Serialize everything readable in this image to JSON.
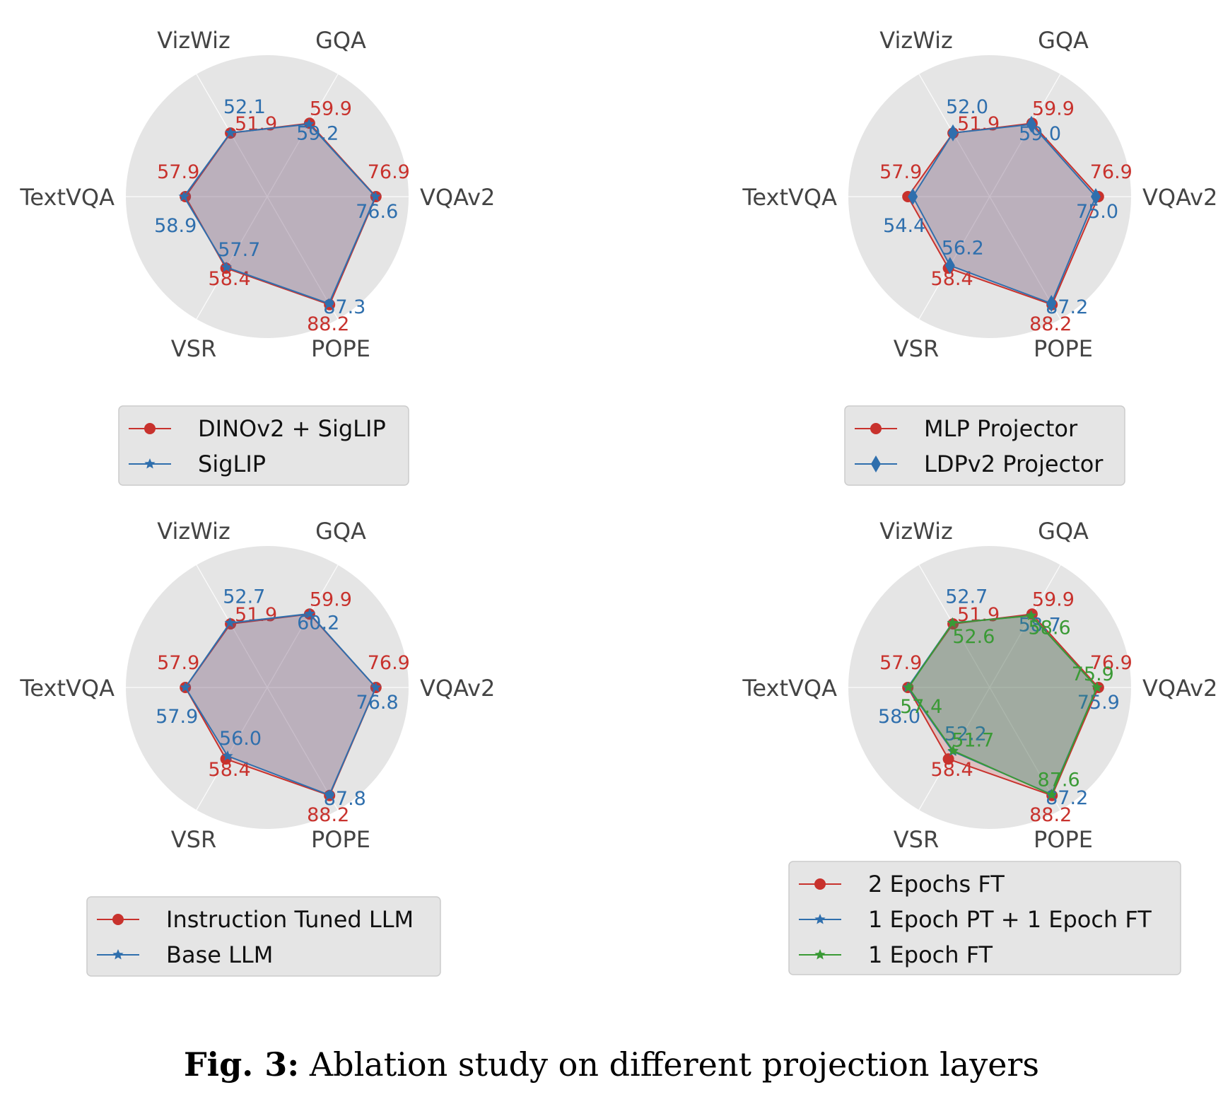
{
  "caption": {
    "prefix": "Fig. 3:",
    "text": "Ablation study on different projection layers"
  },
  "colors": {
    "red": "#c8322d",
    "blue": "#2f6fad",
    "green": "#3a9a35",
    "bg": "#e5e5e5",
    "grid": "#ffffff"
  },
  "chart_data": [
    {
      "type": "radar",
      "title": "",
      "axes": [
        "GQA",
        "VQAv2",
        "POPE",
        "VSR",
        "TextVQA",
        "VizWiz"
      ],
      "rlim": [
        0,
        100
      ],
      "legend_position": "below",
      "series": [
        {
          "name": "DINOv2 + SigLIP",
          "color": "red",
          "marker": "circle",
          "values": [
            59.9,
            76.9,
            88.2,
            58.4,
            57.9,
            51.9
          ],
          "labels": [
            "59.9",
            "76.9",
            "88.2",
            "58.4",
            "57.9",
            "51.9"
          ]
        },
        {
          "name": "SigLIP",
          "color": "blue",
          "marker": "star",
          "values": [
            59.2,
            76.6,
            87.3,
            57.7,
            58.9,
            52.1
          ],
          "labels": [
            "59.2",
            "76.6",
            "87.3",
            "57.7",
            "58.9",
            "52.1"
          ]
        }
      ]
    },
    {
      "type": "radar",
      "title": "",
      "axes": [
        "GQA",
        "VQAv2",
        "POPE",
        "VSR",
        "TextVQA",
        "VizWiz"
      ],
      "rlim": [
        0,
        100
      ],
      "legend_position": "below",
      "series": [
        {
          "name": "MLP Projector",
          "color": "red",
          "marker": "circle",
          "values": [
            59.9,
            76.9,
            88.2,
            58.4,
            57.9,
            51.9
          ],
          "labels": [
            "59.9",
            "76.9",
            "88.2",
            "58.4",
            "57.9",
            "51.9"
          ]
        },
        {
          "name": "LDPv2 Projector",
          "color": "blue",
          "marker": "diamond",
          "values": [
            59.0,
            75.0,
            87.2,
            56.2,
            54.4,
            52.0
          ],
          "labels": [
            "59.0",
            "75.0",
            "87.2",
            "56.2",
            "54.4",
            "52.0"
          ]
        }
      ]
    },
    {
      "type": "radar",
      "title": "",
      "axes": [
        "GQA",
        "VQAv2",
        "POPE",
        "VSR",
        "TextVQA",
        "VizWiz"
      ],
      "rlim": [
        0,
        100
      ],
      "legend_position": "below",
      "series": [
        {
          "name": "Instruction Tuned LLM",
          "color": "red",
          "marker": "circle",
          "values": [
            59.9,
            76.9,
            88.2,
            58.4,
            57.9,
            51.9
          ],
          "labels": [
            "59.9",
            "76.9",
            "88.2",
            "58.4",
            "57.9",
            "51.9"
          ]
        },
        {
          "name": "Base LLM",
          "color": "blue",
          "marker": "star",
          "values": [
            60.2,
            76.8,
            87.8,
            56.0,
            57.9,
            52.7
          ],
          "labels": [
            "60.2",
            "76.8",
            "87.8",
            "56.0",
            "57.9",
            "52.7"
          ]
        }
      ]
    },
    {
      "type": "radar",
      "title": "",
      "axes": [
        "GQA",
        "VQAv2",
        "POPE",
        "VSR",
        "TextVQA",
        "VizWiz"
      ],
      "rlim": [
        0,
        100
      ],
      "legend_position": "below",
      "series": [
        {
          "name": "2 Epochs FT",
          "color": "red",
          "marker": "circle",
          "values": [
            59.9,
            76.9,
            88.2,
            58.4,
            57.9,
            51.9
          ],
          "labels": [
            "59.9",
            "76.9",
            "88.2",
            "58.4",
            "57.9",
            "51.9"
          ]
        },
        {
          "name": "1 Epoch PT + 1 Epoch FT",
          "color": "blue",
          "marker": "star",
          "values": [
            58.7,
            75.9,
            87.2,
            52.2,
            58.0,
            52.7
          ],
          "labels": [
            "58.7",
            "75.9",
            "87.2",
            "52.2",
            "58.0",
            "52.7"
          ]
        },
        {
          "name": "1 Epoch FT",
          "color": "green",
          "marker": "star",
          "values": [
            58.6,
            75.9,
            87.6,
            51.7,
            57.4,
            52.6
          ],
          "labels": [
            "58.6",
            "75.9",
            "87.6",
            "51.7",
            "57.4",
            "52.6"
          ]
        }
      ]
    }
  ]
}
